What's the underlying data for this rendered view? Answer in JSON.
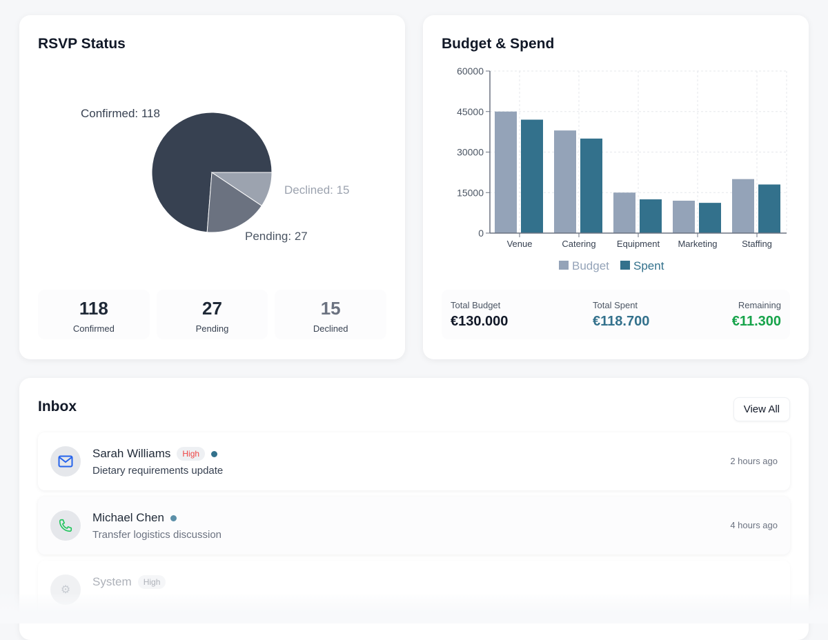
{
  "rsvp": {
    "title": "RSVP Status",
    "slices": [
      {
        "name": "Confirmed",
        "value": 118,
        "label": "Confirmed: 118",
        "color": "#374151"
      },
      {
        "name": "Pending",
        "value": 27,
        "label": "Pending: 27",
        "color": "#6b7280"
      },
      {
        "name": "Declined",
        "value": 15,
        "label": "Declined: 15",
        "color": "#9ca3af"
      }
    ],
    "stats": [
      {
        "value": "118",
        "label": "Confirmed",
        "color": "#1f2937"
      },
      {
        "value": "27",
        "label": "Pending",
        "color": "#374151"
      },
      {
        "value": "15",
        "label": "Declined",
        "color": "#6b7280"
      }
    ]
  },
  "budget": {
    "title": "Budget & Spend",
    "totals": [
      {
        "label": "Total Budget",
        "value": "€130.000",
        "color": "#111827"
      },
      {
        "label": "Total Spent",
        "value": "€118.700",
        "color": "#33718c"
      },
      {
        "label": "Remaining",
        "value": "€11.300",
        "color": "#16a34a"
      }
    ]
  },
  "chart_data": [
    {
      "type": "pie",
      "categories": [
        "Confirmed",
        "Pending",
        "Declined"
      ],
      "values": [
        118,
        27,
        15
      ],
      "labels": [
        "Confirmed: 118",
        "Pending: 27",
        "Declined: 15"
      ]
    },
    {
      "type": "bar",
      "categories": [
        "Venue",
        "Catering",
        "Equipment",
        "Marketing",
        "Staffing"
      ],
      "series": [
        {
          "name": "Budget",
          "values": [
            45000,
            38000,
            15000,
            12000,
            20000
          ],
          "color": "#94a3b8"
        },
        {
          "name": "Spent",
          "values": [
            42000,
            35000,
            12500,
            11200,
            18000
          ],
          "color": "#33718c"
        }
      ],
      "yticks": [
        "0",
        "15000",
        "30000",
        "45000",
        "60000"
      ],
      "ylim": [
        0,
        60000
      ],
      "grid": true,
      "legend": "bottom"
    }
  ],
  "inbox": {
    "title": "Inbox",
    "view_all": "View All",
    "items": [
      {
        "name": "Sarah Williams",
        "badge": "High",
        "subject": "Dietary requirements update",
        "time": "2 hours ago",
        "icon": "mail-icon",
        "unread": true
      },
      {
        "name": "Michael Chen",
        "badge": null,
        "subject": "Transfer logistics discussion",
        "time": "4 hours ago",
        "icon": "phone-icon",
        "unread": true
      },
      {
        "name": "System",
        "badge": "High",
        "icon": "system-icon"
      }
    ]
  }
}
